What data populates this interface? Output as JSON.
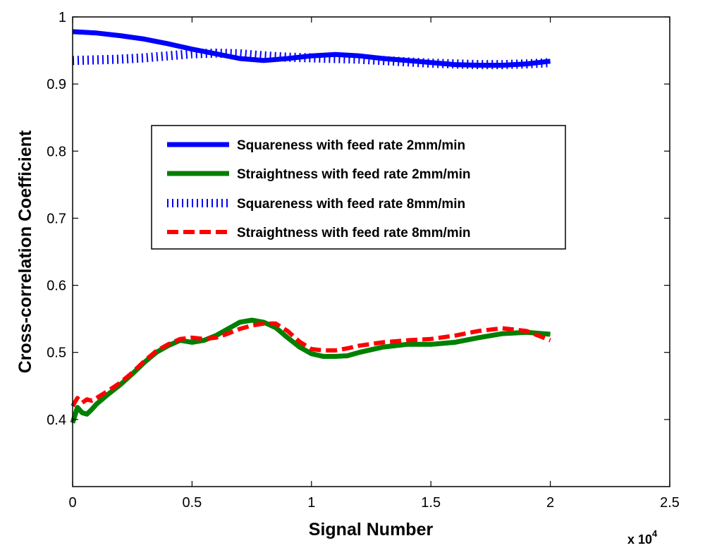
{
  "chart_data": {
    "type": "line",
    "title": "",
    "xlabel": "Signal Number",
    "ylabel": "Cross-correlation Coefficient",
    "x_exponent_label": "x 10",
    "x_exponent_power": "4",
    "xlim": [
      0,
      25000
    ],
    "ylim": [
      0.3,
      1.0
    ],
    "grid": false,
    "legend_position": "upper-center",
    "x_ticks": [
      {
        "value": 0,
        "label": "0"
      },
      {
        "value": 5000,
        "label": "0.5"
      },
      {
        "value": 10000,
        "label": "1"
      },
      {
        "value": 15000,
        "label": "1.5"
      },
      {
        "value": 20000,
        "label": "2"
      },
      {
        "value": 25000,
        "label": "2.5"
      }
    ],
    "y_ticks": [
      {
        "value": 0.4,
        "label": "0.4"
      },
      {
        "value": 0.5,
        "label": "0.5"
      },
      {
        "value": 0.6,
        "label": "0.6"
      },
      {
        "value": 0.7,
        "label": "0.7"
      },
      {
        "value": 0.8,
        "label": "0.8"
      },
      {
        "value": 0.9,
        "label": "0.9"
      },
      {
        "value": 1.0,
        "label": "1"
      }
    ],
    "series": [
      {
        "name": "Squareness with feed rate 2mm/min",
        "color": "#0000ff",
        "style": "solid",
        "x": [
          0,
          1000,
          2000,
          3000,
          4000,
          5000,
          6000,
          7000,
          8000,
          9000,
          10000,
          11000,
          12000,
          13000,
          14000,
          15000,
          16000,
          17000,
          18000,
          19000,
          20000
        ],
        "y": [
          0.978,
          0.976,
          0.972,
          0.967,
          0.96,
          0.952,
          0.945,
          0.938,
          0.935,
          0.938,
          0.942,
          0.944,
          0.942,
          0.938,
          0.935,
          0.932,
          0.929,
          0.928,
          0.928,
          0.93,
          0.934
        ]
      },
      {
        "name": "Straightness with feed rate 2mm/min",
        "color": "#008000",
        "style": "solid",
        "x": [
          0,
          200,
          400,
          600,
          800,
          1000,
          1500,
          2000,
          2500,
          3000,
          3500,
          4000,
          4500,
          5000,
          5500,
          6000,
          6500,
          7000,
          7500,
          8000,
          8500,
          9000,
          9500,
          10000,
          10500,
          11000,
          11500,
          12000,
          13000,
          14000,
          15000,
          16000,
          17000,
          18000,
          19000,
          20000
        ],
        "y": [
          0.395,
          0.418,
          0.41,
          0.408,
          0.415,
          0.423,
          0.438,
          0.452,
          0.468,
          0.485,
          0.5,
          0.51,
          0.518,
          0.515,
          0.518,
          0.525,
          0.535,
          0.545,
          0.548,
          0.545,
          0.537,
          0.522,
          0.508,
          0.498,
          0.494,
          0.494,
          0.495,
          0.5,
          0.508,
          0.512,
          0.512,
          0.515,
          0.522,
          0.528,
          0.53,
          0.527
        ]
      },
      {
        "name": "Squareness with feed rate 8mm/min",
        "color": "#0000ff",
        "style": "dotted",
        "x": [
          0,
          1000,
          2000,
          3000,
          4000,
          5000,
          6000,
          7000,
          8000,
          9000,
          10000,
          11000,
          12000,
          13000,
          14000,
          15000,
          16000,
          17000,
          18000,
          19000,
          20000
        ],
        "y": [
          0.935,
          0.936,
          0.937,
          0.939,
          0.942,
          0.945,
          0.946,
          0.945,
          0.942,
          0.94,
          0.939,
          0.938,
          0.937,
          0.935,
          0.933,
          0.931,
          0.93,
          0.929,
          0.929,
          0.93,
          0.932
        ]
      },
      {
        "name": "Straightness with feed rate 8mm/min",
        "color": "#ff0000",
        "style": "dashed",
        "x": [
          0,
          200,
          400,
          600,
          800,
          1000,
          1500,
          2000,
          2500,
          3000,
          3500,
          4000,
          4500,
          5000,
          5500,
          6000,
          6500,
          7000,
          7500,
          8000,
          8500,
          9000,
          9500,
          10000,
          10500,
          11000,
          11500,
          12000,
          13000,
          14000,
          15000,
          16000,
          17000,
          18000,
          19000,
          20000
        ],
        "y": [
          0.42,
          0.432,
          0.425,
          0.43,
          0.428,
          0.432,
          0.443,
          0.455,
          0.47,
          0.487,
          0.502,
          0.512,
          0.52,
          0.522,
          0.52,
          0.522,
          0.528,
          0.535,
          0.54,
          0.543,
          0.543,
          0.532,
          0.516,
          0.505,
          0.503,
          0.503,
          0.506,
          0.51,
          0.515,
          0.518,
          0.52,
          0.525,
          0.532,
          0.536,
          0.532,
          0.518
        ]
      }
    ]
  }
}
